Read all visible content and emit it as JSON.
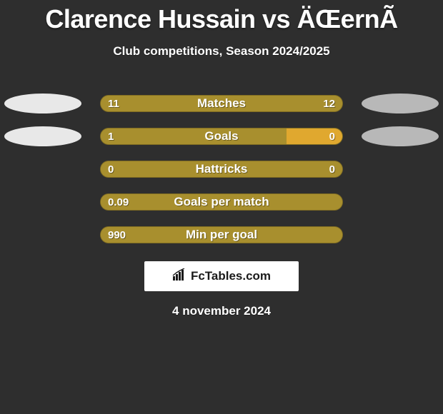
{
  "title": "Clarence Hussain vs ÄŒernÃ­",
  "subtitle": "Club competitions, Season 2024/2025",
  "date": "4 november 2024",
  "logo": {
    "text": "FcTables.com"
  },
  "colors": {
    "left_accent": "#e8e8e8",
    "right_accent": "#b8b8b8",
    "bar_left": "#a88f2e",
    "bar_right": "#a88f2e",
    "bar_bg": "#a88f2e",
    "bar_highlight_right": "#e0a82f",
    "ellipse_left": "#e8e8e8",
    "ellipse_right": "#b8b8b8"
  },
  "stats": [
    {
      "label": "Matches",
      "left_value": "11",
      "right_value": "12",
      "left_pct": 48,
      "right_pct": 52,
      "show_ellipses": true,
      "left_color": "#a88f2e",
      "right_color": "#a88f2e"
    },
    {
      "label": "Goals",
      "left_value": "1",
      "right_value": "0",
      "left_pct": 77,
      "right_pct": 23,
      "show_ellipses": true,
      "left_color": "#a88f2e",
      "right_color": "#e0a82f"
    },
    {
      "label": "Hattricks",
      "left_value": "0",
      "right_value": "0",
      "left_pct": 50,
      "right_pct": 50,
      "show_ellipses": false,
      "left_color": "#a88f2e",
      "right_color": "#a88f2e"
    },
    {
      "label": "Goals per match",
      "left_value": "0.09",
      "right_value": "",
      "left_pct": 100,
      "right_pct": 0,
      "show_ellipses": false,
      "left_color": "#a88f2e",
      "right_color": "#a88f2e"
    },
    {
      "label": "Min per goal",
      "left_value": "990",
      "right_value": "",
      "left_pct": 100,
      "right_pct": 0,
      "show_ellipses": false,
      "left_color": "#a88f2e",
      "right_color": "#a88f2e"
    }
  ]
}
